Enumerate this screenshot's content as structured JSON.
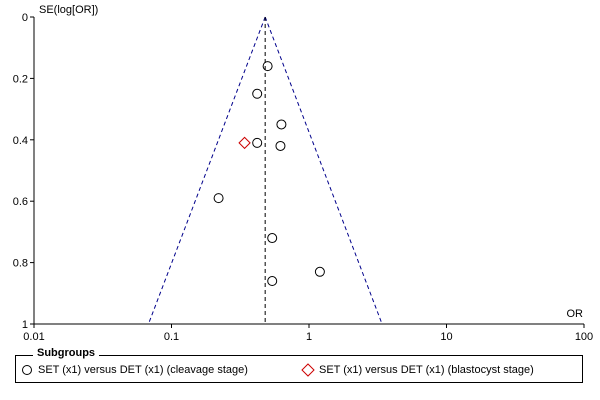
{
  "chart_data": {
    "type": "scatter",
    "plot_kind": "funnel",
    "x_scale": "log",
    "y_axis_inverted": true,
    "xlabel": "OR",
    "ylabel": "SE(log[OR])",
    "xlim": [
      0.01,
      100
    ],
    "ylim": [
      0,
      1
    ],
    "x_ticks": [
      {
        "value": 0.01,
        "label": "0.01"
      },
      {
        "value": 0.1,
        "label": "0.1"
      },
      {
        "value": 1,
        "label": "1"
      },
      {
        "value": 10,
        "label": "10"
      },
      {
        "value": 100,
        "label": "100"
      }
    ],
    "y_ticks": [
      {
        "value": 0,
        "label": "0"
      },
      {
        "value": 0.2,
        "label": "0.2"
      },
      {
        "value": 0.4,
        "label": "0.4"
      },
      {
        "value": 0.6,
        "label": "0.6"
      },
      {
        "value": 0.8,
        "label": "0.8"
      },
      {
        "value": 1,
        "label": "1"
      }
    ],
    "pooled_or": 0.48,
    "funnel_limits": {
      "left_at_se_1": 0.068,
      "right_at_se_1": 3.4
    },
    "series": [
      {
        "name": "SET (x1) versus DET (x1) (cleavage stage)",
        "marker": "circle",
        "color": "#000000",
        "points": [
          {
            "or": 0.5,
            "se": 0.16
          },
          {
            "or": 0.42,
            "se": 0.25
          },
          {
            "or": 0.63,
            "se": 0.35
          },
          {
            "or": 0.42,
            "se": 0.41
          },
          {
            "or": 0.62,
            "se": 0.42
          },
          {
            "or": 0.22,
            "se": 0.59
          },
          {
            "or": 0.54,
            "se": 0.72
          },
          {
            "or": 1.2,
            "se": 0.83
          },
          {
            "or": 0.54,
            "se": 0.86
          }
        ]
      },
      {
        "name": "SET (x1) versus DET (x1) (blastocyst stage)",
        "marker": "diamond",
        "color": "#cc0000",
        "points": [
          {
            "or": 0.34,
            "se": 0.41
          }
        ]
      }
    ],
    "legend": {
      "title": "Subgroups",
      "placement": "bottom"
    },
    "funnel_color": "#00008b",
    "pooled_line_color": "#000000"
  }
}
